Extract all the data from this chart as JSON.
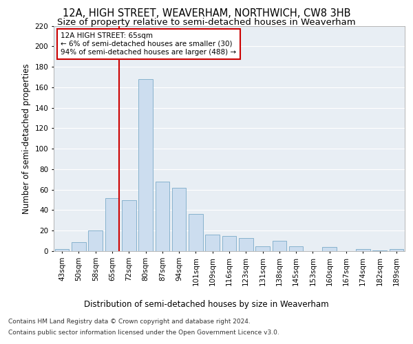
{
  "title1": "12A, HIGH STREET, WEAVERHAM, NORTHWICH, CW8 3HB",
  "title2": "Size of property relative to semi-detached houses in Weaverham",
  "xlabel": "Distribution of semi-detached houses by size in Weaverham",
  "ylabel": "Number of semi-detached properties",
  "categories": [
    "43sqm",
    "50sqm",
    "58sqm",
    "65sqm",
    "72sqm",
    "80sqm",
    "87sqm",
    "94sqm",
    "101sqm",
    "109sqm",
    "116sqm",
    "123sqm",
    "131sqm",
    "138sqm",
    "145sqm",
    "153sqm",
    "160sqm",
    "167sqm",
    "174sqm",
    "182sqm",
    "189sqm"
  ],
  "values": [
    2,
    9,
    20,
    52,
    50,
    168,
    68,
    62,
    36,
    16,
    15,
    13,
    5,
    10,
    5,
    0,
    4,
    0,
    2,
    1,
    2
  ],
  "bar_color": "#ccddef",
  "bar_edge_color": "#7aaac8",
  "highlight_line_color": "#cc0000",
  "annotation_text": "12A HIGH STREET: 65sqm\n← 6% of semi-detached houses are smaller (30)\n94% of semi-detached houses are larger (488) →",
  "annotation_box_color": "#ffffff",
  "annotation_box_edge": "#cc0000",
  "ylim": [
    0,
    220
  ],
  "yticks": [
    0,
    20,
    40,
    60,
    80,
    100,
    120,
    140,
    160,
    180,
    200,
    220
  ],
  "footer1": "Contains HM Land Registry data © Crown copyright and database right 2024.",
  "footer2": "Contains public sector information licensed under the Open Government Licence v3.0.",
  "fig_bg_color": "#ffffff",
  "plot_bg_color": "#e8eef4",
  "grid_color": "#ffffff",
  "title_fontsize": 10.5,
  "subtitle_fontsize": 9.5,
  "axis_label_fontsize": 8.5,
  "tick_fontsize": 7.5,
  "annotation_fontsize": 7.5,
  "footer_fontsize": 6.5
}
